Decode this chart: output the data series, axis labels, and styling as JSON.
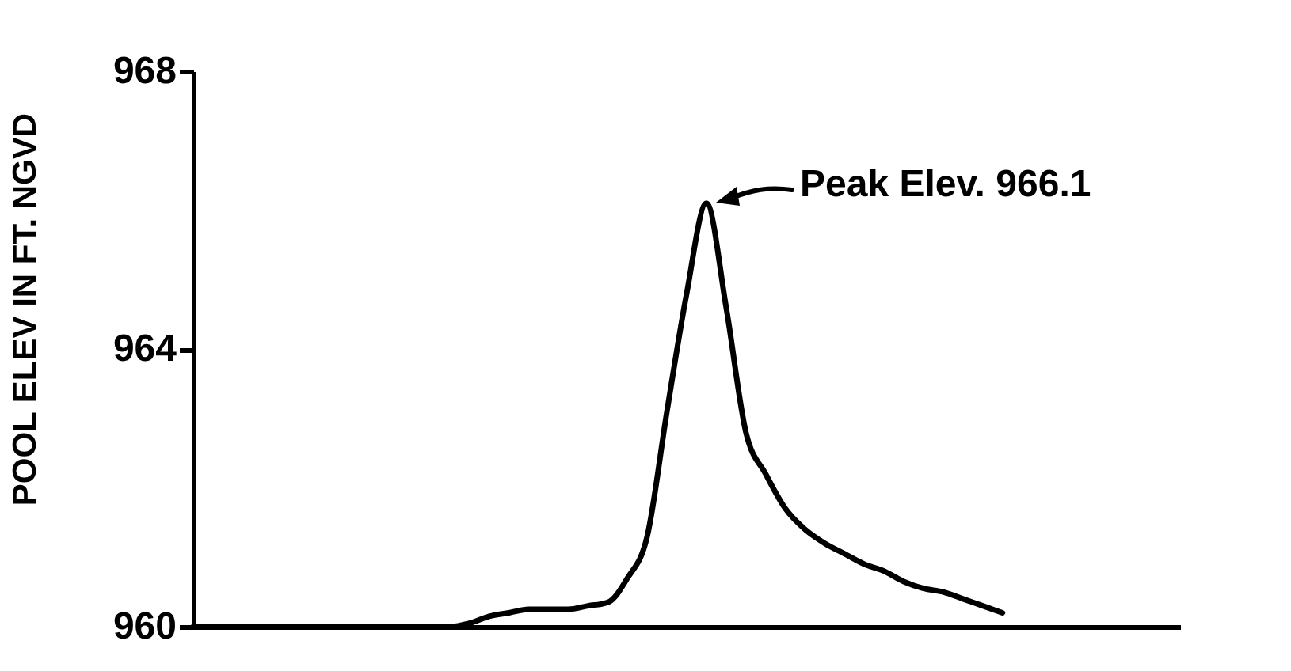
{
  "chart_data": {
    "type": "line",
    "ylabel": "POOL ELEV IN FT. NGVD",
    "categories": [
      null,
      null,
      null,
      null,
      null,
      null,
      null,
      null,
      null,
      null,
      null,
      null,
      null,
      null,
      null,
      null,
      null,
      null,
      null,
      null,
      null,
      null,
      null,
      null,
      null,
      null,
      null,
      null,
      null,
      null,
      null,
      null,
      null,
      null,
      null,
      null,
      null,
      null,
      null,
      null,
      null,
      null,
      null,
      null,
      null,
      null,
      null,
      null,
      null,
      null,
      null
    ],
    "series": [
      {
        "color": "#000000",
        "values": [
          960,
          960,
          960,
          960,
          960,
          960,
          960,
          960,
          960,
          960,
          960,
          960,
          960,
          960,
          960.05,
          960.15,
          960.2,
          960.25,
          960.25,
          960.25,
          960.3,
          960.35,
          960.7,
          961.3,
          963.1,
          964.8,
          966.1,
          964.6,
          962.8,
          962.2,
          961.7,
          961.4,
          961.2,
          961.05,
          960.9,
          960.8,
          960.65,
          960.55,
          960.5,
          960.4,
          960.3,
          960.2,
          null,
          null,
          null,
          null,
          null,
          null,
          null,
          null,
          null
        ]
      }
    ],
    "ylim": [
      960,
      968
    ],
    "yticks": [
      960,
      964,
      968
    ],
    "grid": false,
    "tick_labels": "y",
    "marker": "none",
    "line_style": "solid",
    "annotations": [
      "Peak Elev. 966.1"
    ]
  }
}
